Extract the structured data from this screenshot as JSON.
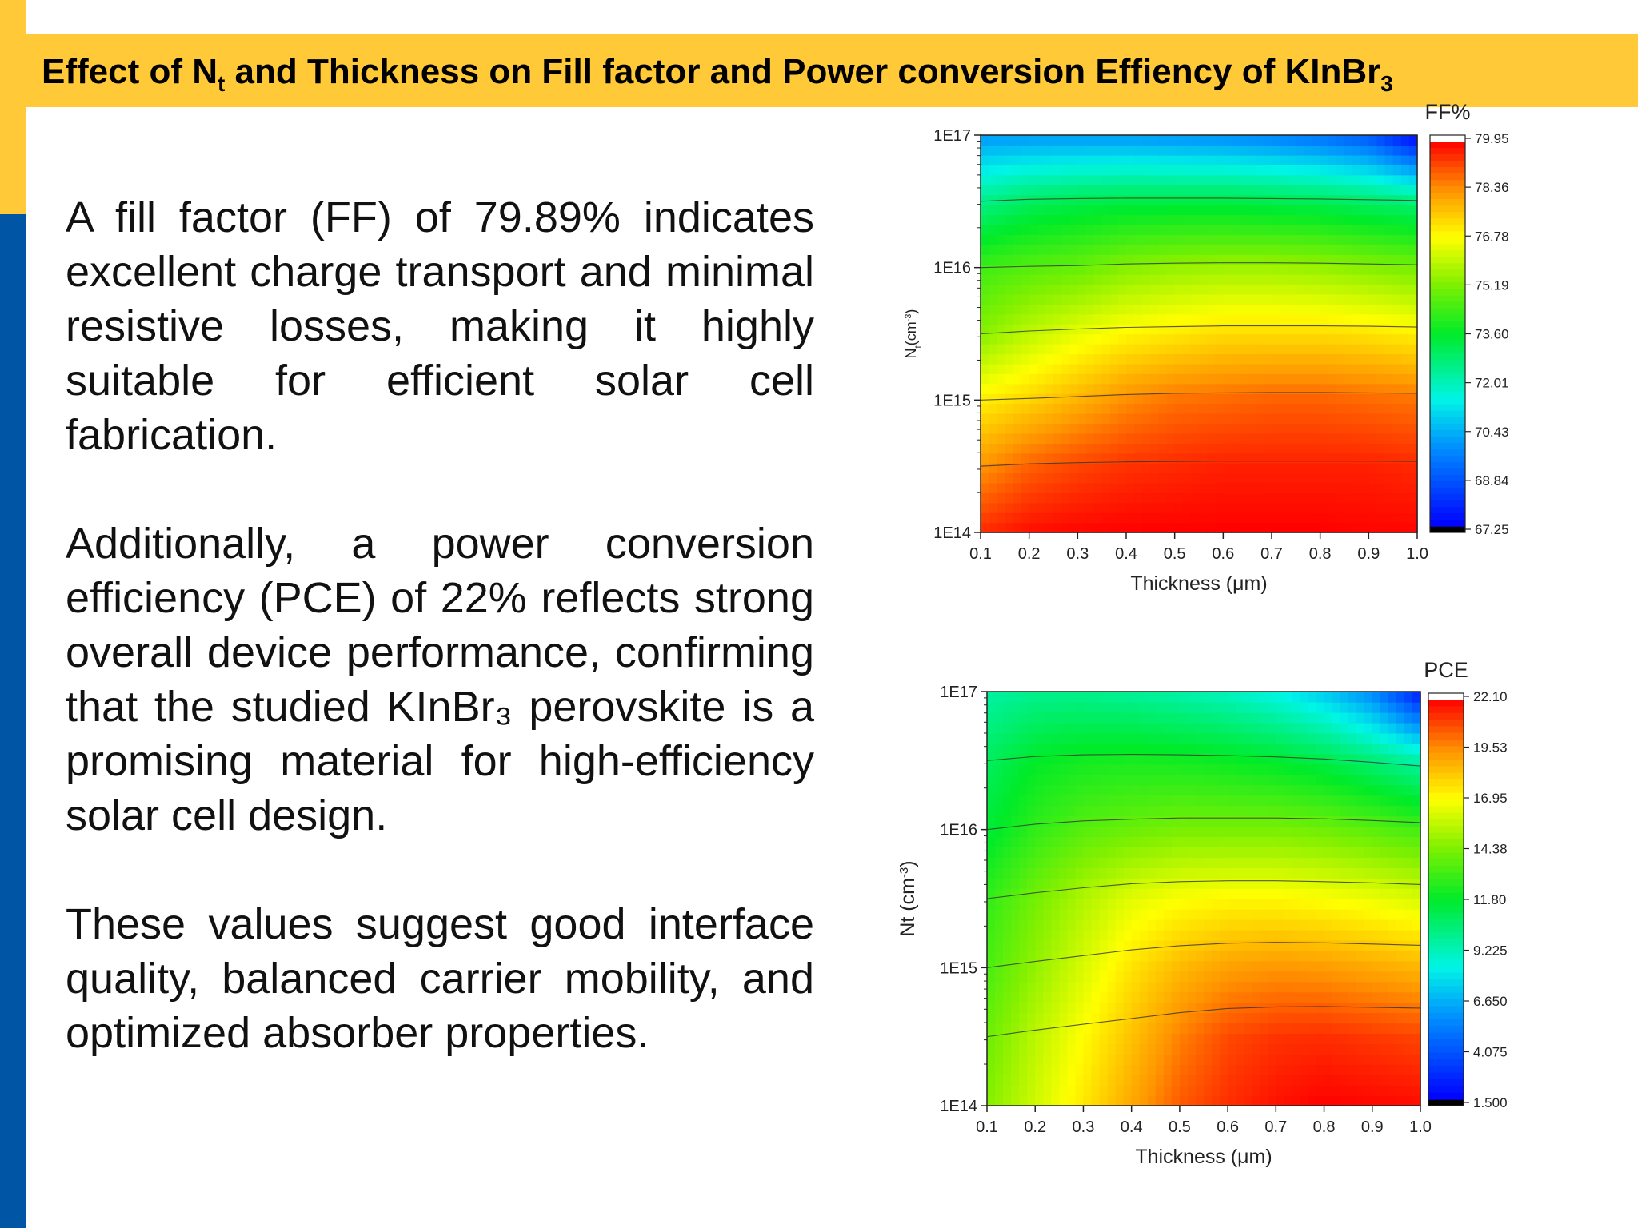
{
  "slide": {
    "title_part1": "Effect of N",
    "title_sub": "t",
    "title_part2": " and Thickness on Fill factor and Power conversion Effiency of KInBr",
    "title_sub2": "3",
    "paragraphs": [
      "A fill factor (FF) of 79.89% indicates excellent charge transport and minimal resistive losses, making it highly suitable for efficient solar cell fabrication.",
      "Additionally, a power conversion efficiency (PCE) of 22% reflects strong overall device performance, confirming that the studied KInBr₃ perovskite is a promising material for high-efficiency solar cell design.",
      "These values suggest good interface quality, balanced carrier mobility, and optimized absorber properties."
    ],
    "colors": {
      "accent_yellow": "#FFC938",
      "accent_blue": "#0056A4"
    }
  },
  "chart_data": [
    {
      "type": "heatmap",
      "title": "FF%",
      "xlabel": "Thickness (μm)",
      "ylabel_main": "N",
      "ylabel_sub": "t",
      "ylabel_rest": "(cm",
      "ylabel_sup": "-3",
      "ylabel_end": ")",
      "x_tick_labels": [
        "0.1",
        "0.2",
        "0.3",
        "0.4",
        "0.5",
        "0.6",
        "0.7",
        "0.8",
        "0.9",
        "1.0"
      ],
      "y_tick_labels": [
        "1E14",
        "1E15",
        "1E16",
        "1E17"
      ],
      "xlim": [
        0.1,
        1.0
      ],
      "ylim": [
        100000000000000.0,
        1e+17
      ],
      "y_scale": "log",
      "colorbar_ticks": [
        "79.95",
        "78.36",
        "76.78",
        "75.19",
        "73.60",
        "72.01",
        "70.43",
        "68.84",
        "67.25"
      ],
      "color_range": [
        67.25,
        79.95
      ],
      "x": [
        0.1,
        0.2,
        0.3,
        0.4,
        0.5,
        0.6,
        0.7,
        0.8,
        0.9,
        1.0
      ],
      "y_log": [
        14,
        14.5,
        15,
        15.5,
        16,
        16.5,
        17
      ],
      "z": [
        [
          79.5,
          79.8,
          79.9,
          79.95,
          79.95,
          79.95,
          79.95,
          79.95,
          79.9,
          79.9
        ],
        [
          78.3,
          78.9,
          79.2,
          79.4,
          79.5,
          79.6,
          79.6,
          79.6,
          79.6,
          79.5
        ],
        [
          77.0,
          77.4,
          77.9,
          78.4,
          78.7,
          78.8,
          78.9,
          78.9,
          78.8,
          78.7
        ],
        [
          75.3,
          76.0,
          76.5,
          76.9,
          77.1,
          77.3,
          77.3,
          77.3,
          77.2,
          77.0
        ],
        [
          74.4,
          74.7,
          74.9,
          75.3,
          75.5,
          75.6,
          75.6,
          75.5,
          75.3,
          75.1
        ],
        [
          72.5,
          73.0,
          73.2,
          73.3,
          73.3,
          73.3,
          73.2,
          73.1,
          72.9,
          72.7
        ],
        [
          70.0,
          70.0,
          70.0,
          70.0,
          69.9,
          69.8,
          69.6,
          69.3,
          68.8,
          67.3
        ]
      ]
    },
    {
      "type": "heatmap",
      "title": "PCE",
      "xlabel": "Thickness (μm)",
      "ylabel_main": "Nt (cm",
      "ylabel_sup": "-3",
      "ylabel_end": ")",
      "x_tick_labels": [
        "0.1",
        "0.2",
        "0.3",
        "0.4",
        "0.5",
        "0.6",
        "0.7",
        "0.8",
        "0.9",
        "1.0"
      ],
      "y_tick_labels": [
        "1E14",
        "1E15",
        "1E16",
        "1E17"
      ],
      "xlim": [
        0.1,
        1.0
      ],
      "ylim": [
        100000000000000.0,
        1e+17
      ],
      "y_scale": "log",
      "colorbar_ticks": [
        "22.10",
        "19.53",
        "16.95",
        "14.38",
        "11.80",
        "9.225",
        "6.650",
        "4.075",
        "1.500"
      ],
      "color_range": [
        1.5,
        22.1
      ],
      "x": [
        0.1,
        0.2,
        0.3,
        0.4,
        0.5,
        0.6,
        0.7,
        0.8,
        0.9,
        1.0
      ],
      "y_log": [
        14,
        14.5,
        15,
        15.5,
        16,
        16.5,
        17
      ],
      "z": [
        [
          14.5,
          16.0,
          17.5,
          19.0,
          20.5,
          21.3,
          21.8,
          22.1,
          22.0,
          21.9
        ],
        [
          14.0,
          15.6,
          17.0,
          18.4,
          19.8,
          20.8,
          21.2,
          21.3,
          21.1,
          20.9
        ],
        [
          13.3,
          14.8,
          16.2,
          17.6,
          18.6,
          19.2,
          19.4,
          19.3,
          19.0,
          18.7
        ],
        [
          12.8,
          14.2,
          15.4,
          16.4,
          16.9,
          17.1,
          17.1,
          16.9,
          16.6,
          16.2
        ],
        [
          11.5,
          12.8,
          13.6,
          14.0,
          14.3,
          14.3,
          14.3,
          14.1,
          13.7,
          13.2
        ],
        [
          10.8,
          11.8,
          12.2,
          12.3,
          12.2,
          12.0,
          11.7,
          11.2,
          10.4,
          9.5
        ],
        [
          9.5,
          9.9,
          9.9,
          9.7,
          9.4,
          9.0,
          8.3,
          7.2,
          5.5,
          2.2
        ]
      ]
    }
  ]
}
